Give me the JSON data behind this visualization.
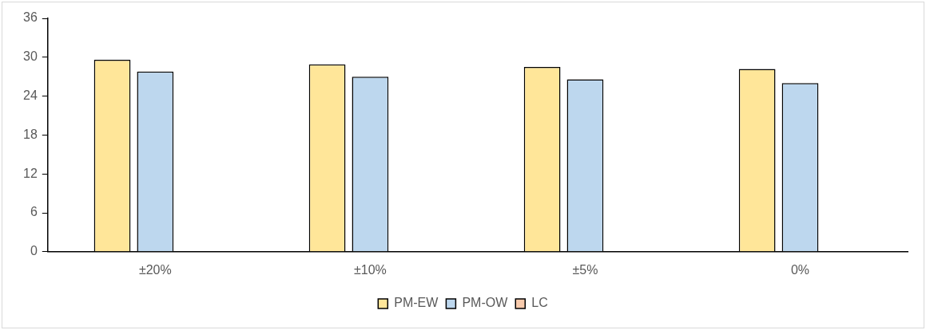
{
  "chart_data": {
    "type": "bar",
    "categories": [
      "±20%",
      "±10%",
      "±5%",
      "0%"
    ],
    "series": [
      {
        "name": "PM-EW",
        "color": "#ffe699",
        "values": [
          29.6,
          28.9,
          28.5,
          28.2
        ]
      },
      {
        "name": "PM-OW",
        "color": "#bdd7ee",
        "values": [
          27.8,
          27.0,
          26.6,
          26.0
        ]
      },
      {
        "name": "LC",
        "color": "#f8cbad",
        "values": [
          null,
          null,
          null,
          null
        ]
      }
    ],
    "ylim": [
      0,
      36
    ],
    "yticks": [
      0,
      6,
      12,
      18,
      24,
      30,
      36
    ],
    "grid": false,
    "legend": "bottom"
  }
}
